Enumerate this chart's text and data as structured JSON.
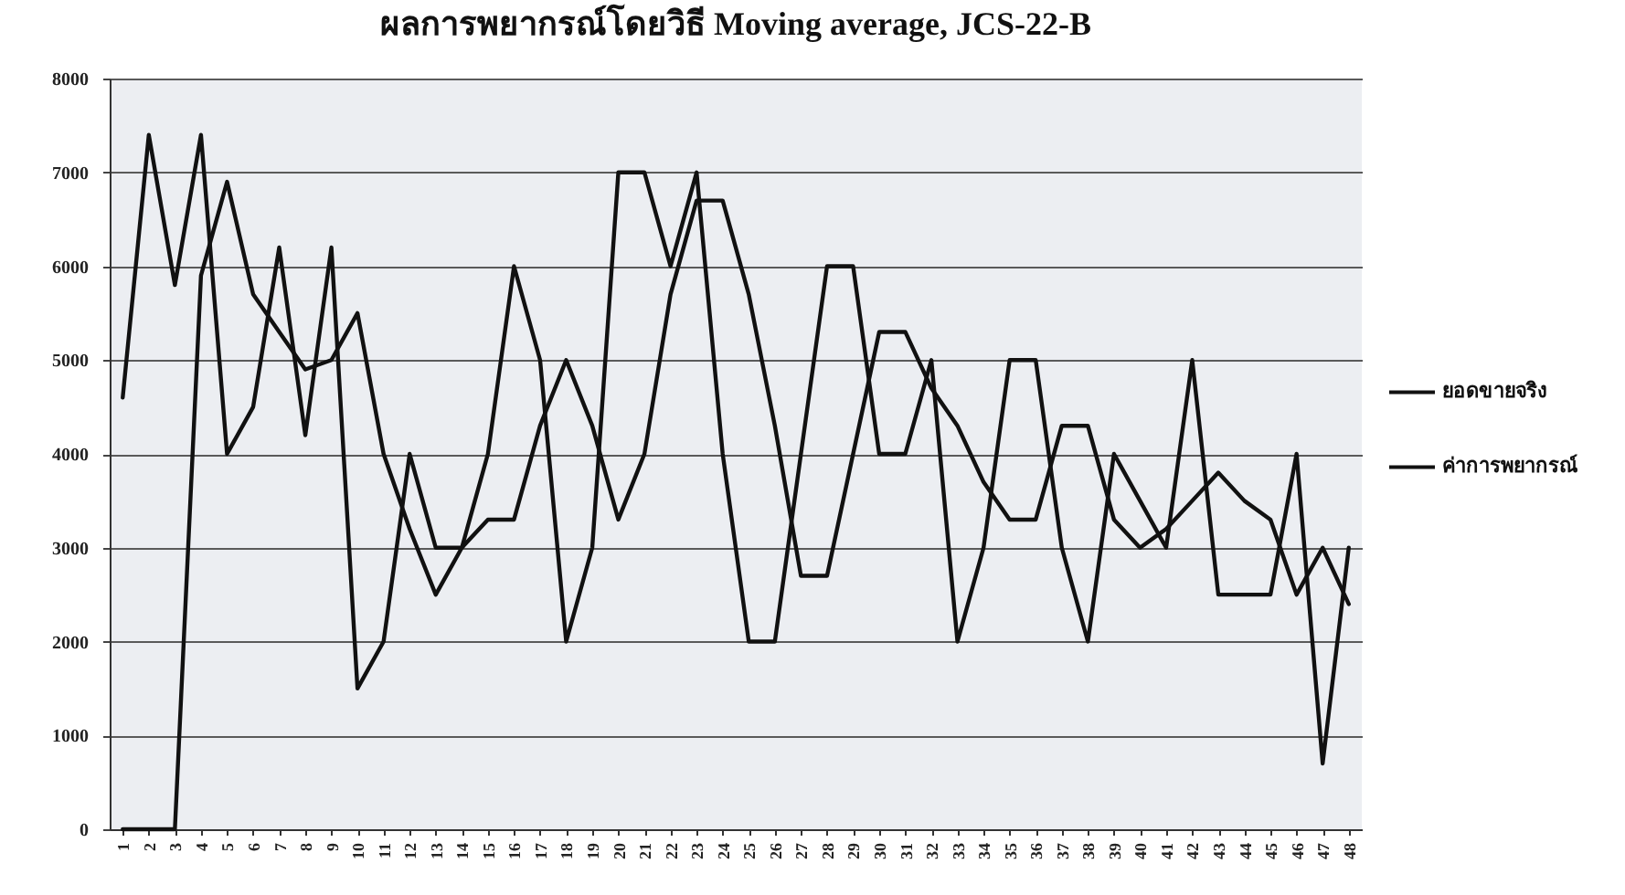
{
  "chart_data": {
    "type": "line",
    "title": "ผลการพยากรณ์โดยวิธี Moving average, JCS-22-B",
    "categories": [
      "1",
      "2",
      "3",
      "4",
      "5",
      "6",
      "7",
      "8",
      "9",
      "10",
      "11",
      "12",
      "13",
      "14",
      "15",
      "16",
      "17",
      "18",
      "19",
      "20",
      "21",
      "22",
      "23",
      "24",
      "25",
      "26",
      "27",
      "28",
      "29",
      "30",
      "31",
      "32",
      "33",
      "34",
      "35",
      "36",
      "37",
      "38",
      "39",
      "40",
      "41",
      "42",
      "43",
      "44",
      "45",
      "46",
      "47",
      "48"
    ],
    "series": [
      {
        "name": "ยอดขายจริง",
        "color": "#111111",
        "values": [
          4600,
          7400,
          5800,
          7400,
          4000,
          4500,
          6200,
          4200,
          6200,
          1500,
          2000,
          4000,
          3000,
          3000,
          4000,
          6000,
          5000,
          2000,
          3000,
          7000,
          7000,
          6000,
          7000,
          4000,
          2000,
          2000,
          4000,
          6000,
          6000,
          4000,
          4000,
          5000,
          2000,
          3000,
          5000,
          5000,
          3000,
          2000,
          4000,
          3500,
          3000,
          5000,
          2500,
          2500,
          2500,
          4000,
          700,
          3000
        ]
      },
      {
        "name": "ค่าการพยากรณ์",
        "color": "#111111",
        "values": [
          0,
          0,
          0,
          5900,
          6900,
          5700,
          5300,
          4900,
          5000,
          5500,
          4000,
          3200,
          2500,
          3000,
          3300,
          3300,
          4300,
          5000,
          4300,
          3300,
          4000,
          5700,
          6700,
          6700,
          5700,
          4300,
          2700,
          2700,
          4000,
          5300,
          5300,
          4700,
          4300,
          3700,
          3300,
          3300,
          4300,
          4300,
          3300,
          3000,
          3200,
          3500,
          3800,
          3500,
          3300,
          2500,
          3000,
          2400
        ]
      }
    ],
    "ylim": [
      0,
      8000
    ],
    "yticks": [
      0,
      1000,
      2000,
      3000,
      4000,
      5000,
      6000,
      7000,
      8000
    ],
    "grid": "y",
    "legend": "right",
    "line_style": "solid"
  }
}
